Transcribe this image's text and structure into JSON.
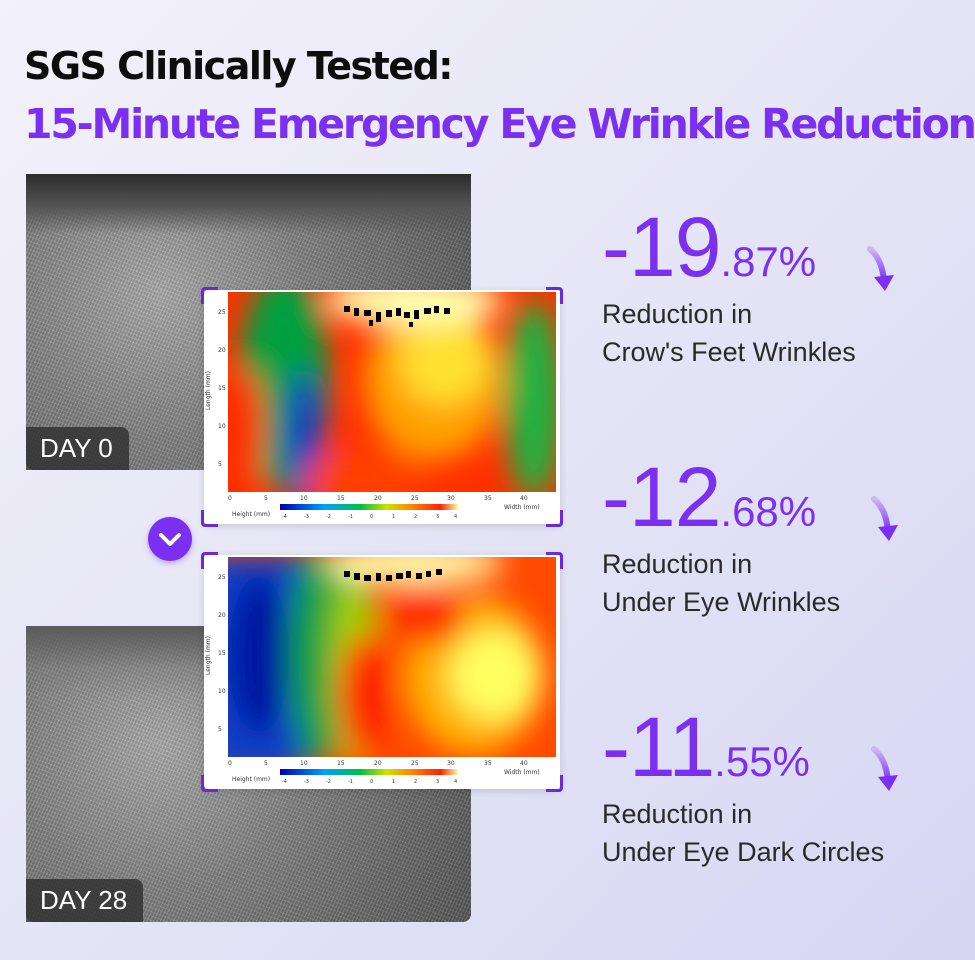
{
  "heading": {
    "line1": "SGS Clinically Tested:",
    "line2": "15-Minute Emergency Eye Wrinkle Reduction"
  },
  "panels": {
    "before_label": "DAY 0",
    "after_label": "DAY 28",
    "divider_icon": "chevron-down-icon"
  },
  "heatmap_axes": {
    "y_label": "Length (mm)",
    "x_label": "Width (mm)",
    "colorbar_label": "Height (mm)",
    "y_ticks": [
      "25",
      "20",
      "15",
      "10",
      "5"
    ],
    "x_ticks": [
      "0",
      "5",
      "10",
      "15",
      "20",
      "25",
      "30",
      "35",
      "40"
    ],
    "colorbar_ticks": [
      "-4",
      "-3",
      "-2",
      "-1",
      "0",
      "1",
      "2",
      "3",
      "4"
    ]
  },
  "stats": [
    {
      "whole": "-19",
      "decimal": ".87%",
      "line1": "Reduction in",
      "line2": "Crow's Feet Wrinkles"
    },
    {
      "whole": "-12",
      "decimal": ".68%",
      "line1": "Reduction in",
      "line2": "Under Eye Wrinkles"
    },
    {
      "whole": "-11",
      "decimal": ".55%",
      "line1": "Reduction in",
      "line2": "Under Eye Dark Circles"
    }
  ],
  "colors": {
    "accent": "#7b2ff0",
    "heading": "#0d0d0d"
  }
}
